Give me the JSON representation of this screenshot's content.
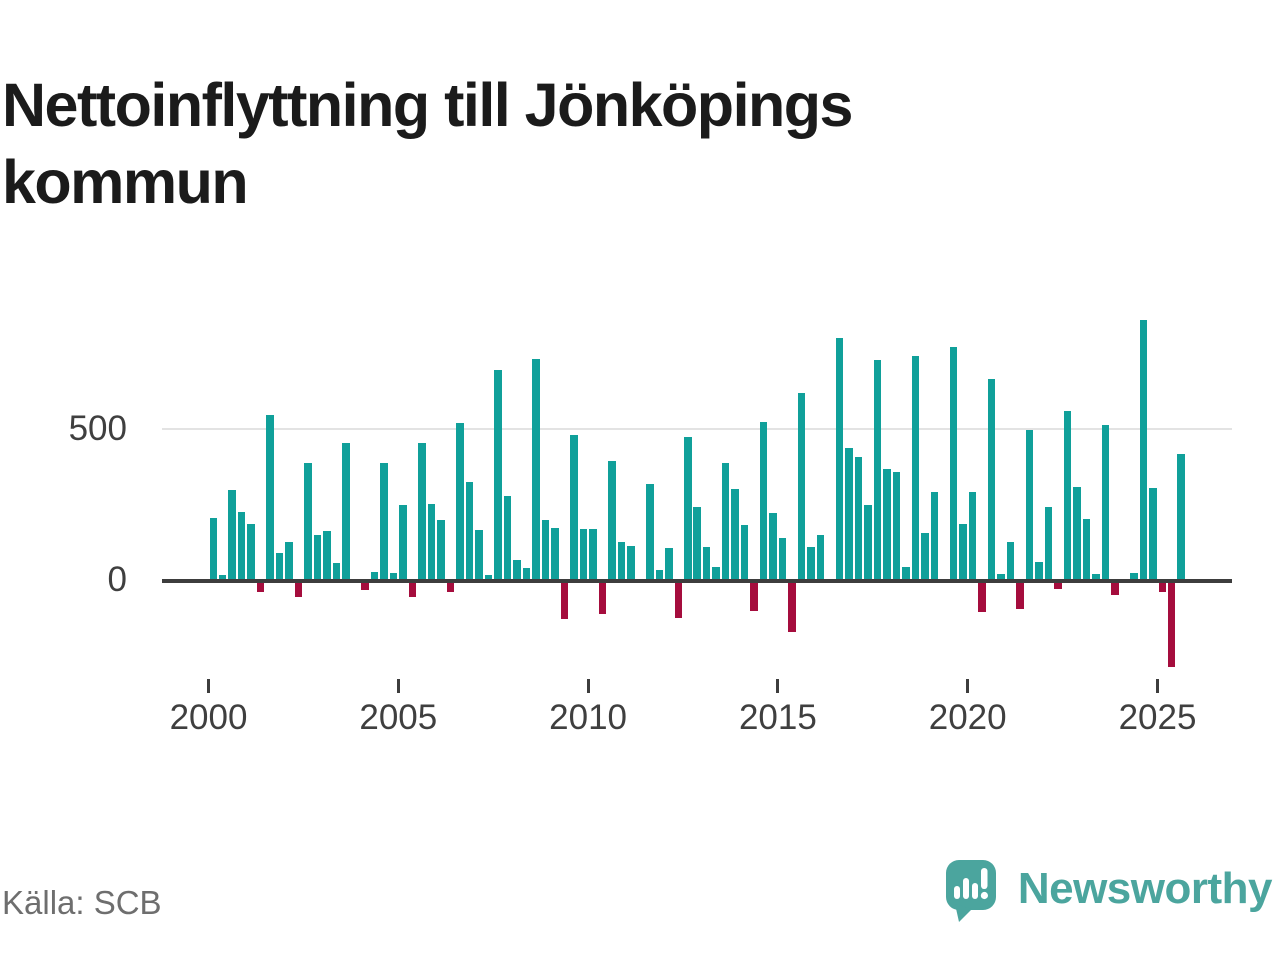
{
  "title": "Nettoinflyttning till Jönköpings kommun",
  "source": "Källa: SCB",
  "brand": {
    "name": "Newsworthy",
    "logo_icon": "speech-bubble-bar-chart-icon",
    "color": "#4ba59e"
  },
  "colors": {
    "positive_bar": "#10a09a",
    "negative_bar": "#a50d3d",
    "axis": "#3d3d3d",
    "gridline": "#e3e3e3",
    "tick_label": "#3f3f3f",
    "source_text": "#6e6e6e",
    "title_text": "#1b1b1b"
  },
  "chart_data": {
    "type": "bar",
    "title": "Nettoinflyttning till Jönköpings kommun",
    "frequency": "quarterly",
    "start_year": 2000,
    "start_quarter": 1,
    "end_label": "2025 Q3",
    "xlabel": "",
    "ylabel": "",
    "ylim": [
      -300,
      900
    ],
    "grid": "single-line-at-500",
    "legend": "none",
    "y_tick_labels": [
      "500",
      "0"
    ],
    "y_tick_values": [
      500,
      0
    ],
    "x_tick_labels": [
      "2000",
      "2005",
      "2010",
      "2015",
      "2020",
      "2025"
    ],
    "values": [
      205,
      18,
      298,
      226,
      186,
      -30,
      544,
      92,
      126,
      -46,
      385,
      151,
      162,
      58,
      452,
      0,
      -24,
      28,
      387,
      26,
      248,
      -46,
      452,
      252,
      199,
      -29,
      517,
      325,
      167,
      18,
      690,
      279,
      67,
      42,
      724,
      199,
      172,
      -119,
      477,
      169,
      169,
      -100,
      391,
      129,
      114,
      0,
      316,
      35,
      109,
      -114,
      472,
      241,
      112,
      45,
      385,
      300,
      183,
      -92,
      518,
      221,
      140,
      -160,
      613,
      110,
      150,
      0,
      793,
      434,
      404,
      248,
      722,
      365,
      357,
      47,
      735,
      157,
      292,
      0,
      764,
      187,
      290,
      -95,
      660,
      23,
      126,
      -84,
      493,
      63,
      243,
      -21,
      556,
      308,
      203,
      23,
      510,
      -40,
      0,
      27,
      853,
      303,
      -29,
      -274,
      414
    ]
  }
}
